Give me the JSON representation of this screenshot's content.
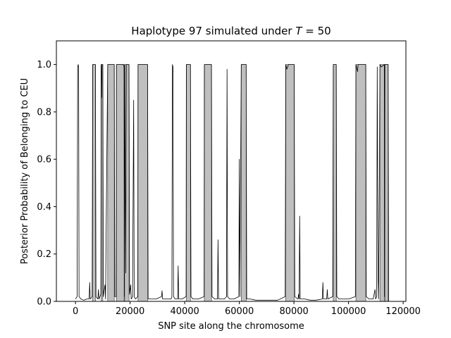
{
  "chart_data": {
    "type": "area",
    "title_prefix": "Haplotype 97 simulated under ",
    "title_var": "T",
    "title_suffix": " =  50",
    "xlabel": "SNP site along the chromosome",
    "ylabel": "Posterior Probability of Belonging to CEU",
    "xlim": [
      -7000,
      121000
    ],
    "ylim": [
      0,
      1.1
    ],
    "xticks": [
      0,
      20000,
      40000,
      60000,
      80000,
      100000,
      120000
    ],
    "yticks": [
      0.0,
      0.2,
      0.4,
      0.6,
      0.8,
      1.0
    ],
    "xtick_labels": [
      "0",
      "20000",
      "40000",
      "60000",
      "80000",
      "100000",
      "120000"
    ],
    "ytick_labels": [
      "0.0",
      "0.2",
      "0.4",
      "0.6",
      "0.8",
      "1.0"
    ],
    "shaded_regions": [
      [
        6300,
        7300
      ],
      [
        9400,
        10000
      ],
      [
        11800,
        14200
      ],
      [
        15000,
        17800
      ],
      [
        18000,
        19600
      ],
      [
        22900,
        26400
      ],
      [
        40600,
        42100
      ],
      [
        47200,
        49800
      ],
      [
        60700,
        62500
      ],
      [
        77000,
        80100
      ],
      [
        94400,
        95500
      ],
      [
        102700,
        106300
      ],
      [
        111500,
        113100
      ],
      [
        113300,
        114500
      ]
    ],
    "posterior_curve": [
      [
        0,
        0.01
      ],
      [
        600,
        0.02
      ],
      [
        800,
        0.99
      ],
      [
        1000,
        1.0
      ],
      [
        1150,
        0.99
      ],
      [
        1300,
        0.02
      ],
      [
        2000,
        0.01
      ],
      [
        3000,
        0.005
      ],
      [
        4200,
        0.01
      ],
      [
        5000,
        0.01
      ],
      [
        5200,
        0.08
      ],
      [
        5400,
        0.01
      ],
      [
        6100,
        0.02
      ],
      [
        6300,
        1.0
      ],
      [
        7300,
        1.0
      ],
      [
        7500,
        0.02
      ],
      [
        8200,
        0.01
      ],
      [
        8400,
        0.05
      ],
      [
        8600,
        0.01
      ],
      [
        9300,
        0.03
      ],
      [
        9400,
        1.0
      ],
      [
        9550,
        0.86
      ],
      [
        9700,
        1.0
      ],
      [
        10000,
        1.0
      ],
      [
        10200,
        0.02
      ],
      [
        10800,
        0.07
      ],
      [
        11000,
        0.01
      ],
      [
        11800,
        1.0
      ],
      [
        14200,
        1.0
      ],
      [
        14400,
        0.02
      ],
      [
        14900,
        0.02
      ],
      [
        15000,
        1.0
      ],
      [
        17500,
        1.0
      ],
      [
        17800,
        0.99
      ],
      [
        17900,
        0.02
      ],
      [
        18000,
        1.0
      ],
      [
        18400,
        0.12
      ],
      [
        18600,
        1.0
      ],
      [
        19600,
        1.0
      ],
      [
        19800,
        0.03
      ],
      [
        20200,
        0.07
      ],
      [
        20400,
        0.01
      ],
      [
        20900,
        0.02
      ],
      [
        21300,
        0.85
      ],
      [
        21500,
        0.02
      ],
      [
        22000,
        0.01
      ],
      [
        22800,
        0.02
      ],
      [
        22900,
        1.0
      ],
      [
        26400,
        1.0
      ],
      [
        26600,
        0.01
      ],
      [
        27500,
        0.01
      ],
      [
        28000,
        0.01
      ],
      [
        29500,
        0.01
      ],
      [
        31500,
        0.02
      ],
      [
        31700,
        0.045
      ],
      [
        31900,
        0.01
      ],
      [
        33000,
        0.01
      ],
      [
        35000,
        0.01
      ],
      [
        35300,
        0.02
      ],
      [
        35500,
        1.0
      ],
      [
        35700,
        0.99
      ],
      [
        35900,
        0.02
      ],
      [
        36500,
        0.01
      ],
      [
        37400,
        0.01
      ],
      [
        37600,
        0.15
      ],
      [
        37800,
        0.01
      ],
      [
        39000,
        0.01
      ],
      [
        40500,
        0.02
      ],
      [
        40600,
        1.0
      ],
      [
        42100,
        1.0
      ],
      [
        42300,
        0.02
      ],
      [
        43000,
        0.01
      ],
      [
        45000,
        0.01
      ],
      [
        47100,
        0.02
      ],
      [
        47200,
        1.0
      ],
      [
        49800,
        1.0
      ],
      [
        50000,
        0.02
      ],
      [
        51000,
        0.01
      ],
      [
        52000,
        0.01
      ],
      [
        52200,
        0.26
      ],
      [
        52400,
        0.01
      ],
      [
        53000,
        0.01
      ],
      [
        54500,
        0.01
      ],
      [
        55300,
        0.02
      ],
      [
        55500,
        0.98
      ],
      [
        55700,
        0.02
      ],
      [
        56500,
        0.01
      ],
      [
        58000,
        0.01
      ],
      [
        59800,
        0.02
      ],
      [
        60000,
        0.6
      ],
      [
        60200,
        0.02
      ],
      [
        60700,
        1.0
      ],
      [
        62500,
        1.0
      ],
      [
        62700,
        0.01
      ],
      [
        64000,
        0.01
      ],
      [
        66000,
        0.005
      ],
      [
        68000,
        0.005
      ],
      [
        70000,
        0.005
      ],
      [
        72000,
        0.005
      ],
      [
        74000,
        0.005
      ],
      [
        76800,
        0.02
      ],
      [
        77000,
        1.0
      ],
      [
        77400,
        0.98
      ],
      [
        78000,
        1.0
      ],
      [
        80100,
        1.0
      ],
      [
        80300,
        0.02
      ],
      [
        81500,
        0.01
      ],
      [
        81700,
        0.03
      ],
      [
        81900,
        0.01
      ],
      [
        82100,
        0.36
      ],
      [
        82300,
        0.01
      ],
      [
        84000,
        0.01
      ],
      [
        86000,
        0.005
      ],
      [
        88000,
        0.005
      ],
      [
        90400,
        0.01
      ],
      [
        90600,
        0.08
      ],
      [
        90800,
        0.01
      ],
      [
        92000,
        0.01
      ],
      [
        92200,
        0.05
      ],
      [
        92400,
        0.01
      ],
      [
        94200,
        0.02
      ],
      [
        94400,
        1.0
      ],
      [
        95500,
        1.0
      ],
      [
        95700,
        0.02
      ],
      [
        96500,
        0.01
      ],
      [
        98000,
        0.01
      ],
      [
        100000,
        0.01
      ],
      [
        102500,
        0.02
      ],
      [
        102700,
        1.0
      ],
      [
        103300,
        0.97
      ],
      [
        103500,
        1.0
      ],
      [
        106300,
        1.0
      ],
      [
        106500,
        0.02
      ],
      [
        107500,
        0.01
      ],
      [
        109000,
        0.01
      ],
      [
        109700,
        0.05
      ],
      [
        109900,
        0.01
      ],
      [
        110300,
        0.02
      ],
      [
        110500,
        0.99
      ],
      [
        110800,
        0.1
      ],
      [
        111000,
        0.01
      ],
      [
        111300,
        0.55
      ],
      [
        111500,
        1.0
      ],
      [
        112000,
        0.99
      ],
      [
        113100,
        1.0
      ],
      [
        113200,
        0.02
      ],
      [
        113300,
        1.0
      ],
      [
        114500,
        1.0
      ],
      [
        114700,
        0.0
      ],
      [
        115000,
        0.0
      ]
    ]
  }
}
